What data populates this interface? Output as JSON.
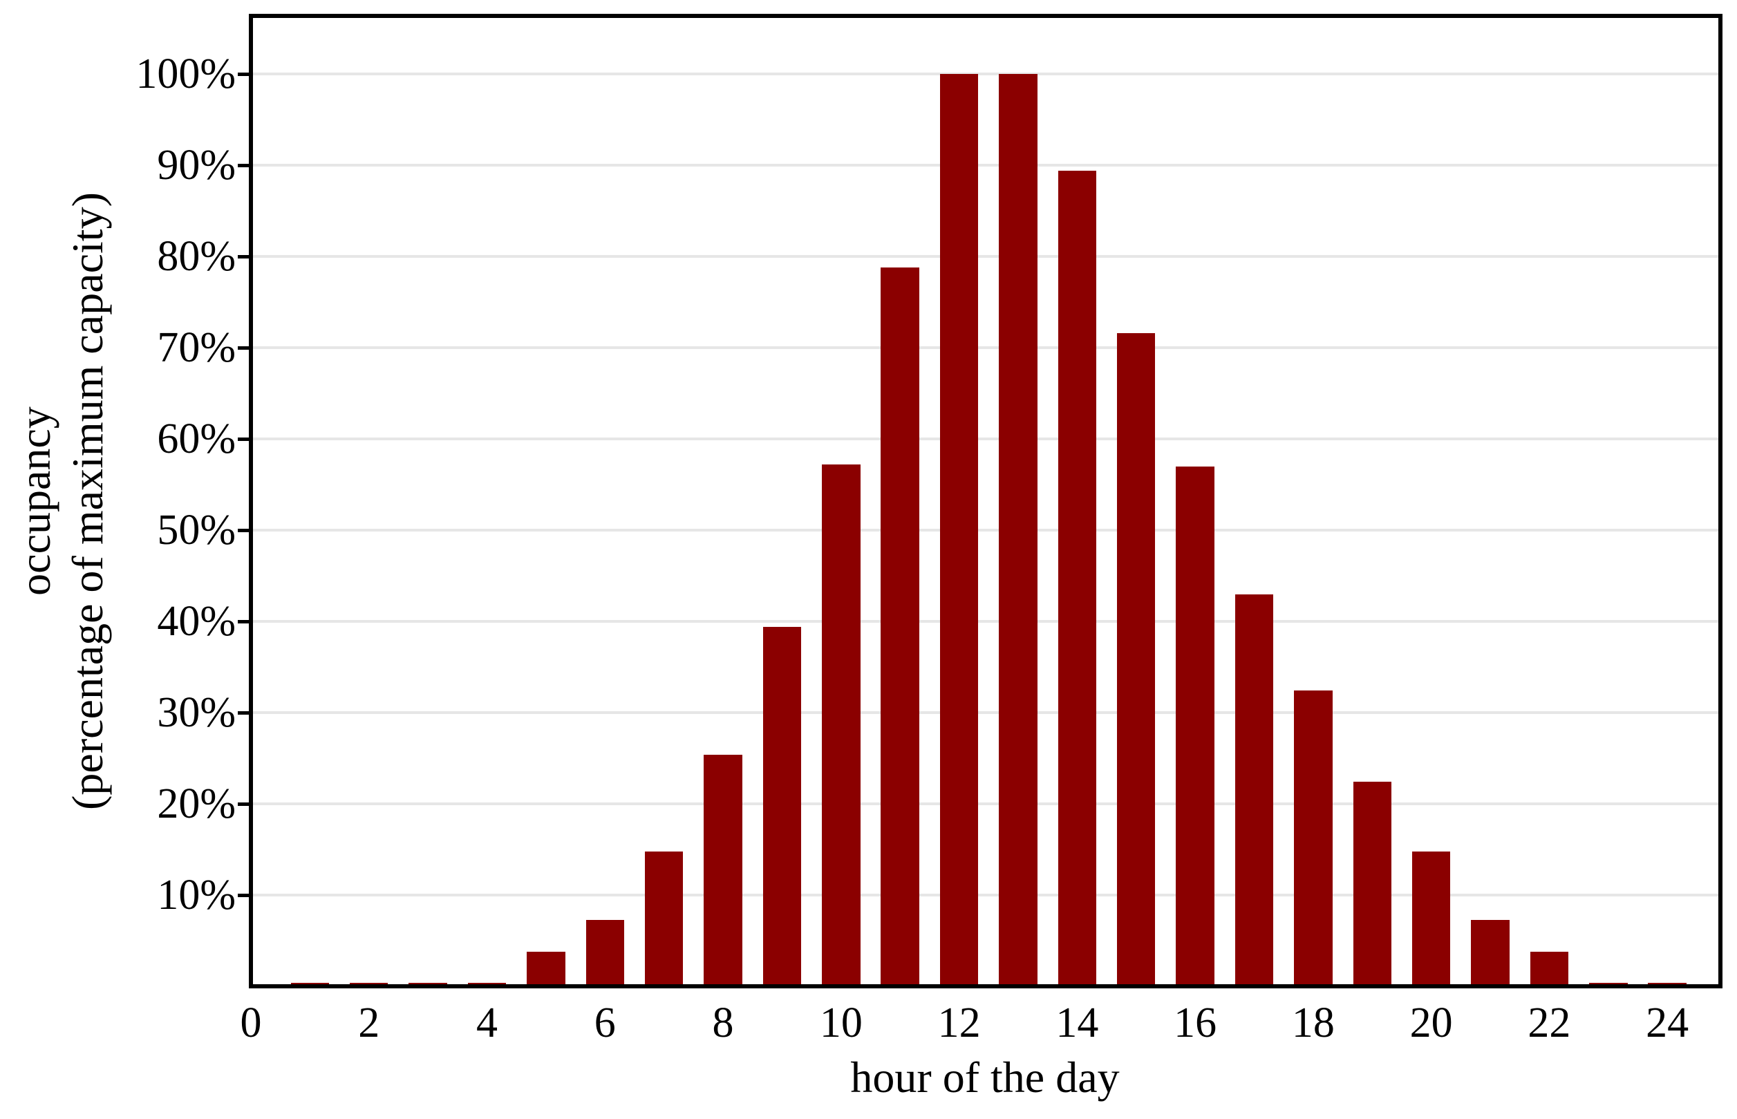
{
  "chart_data": {
    "type": "bar",
    "title": "",
    "xlabel": "hour of the day",
    "ylabel_line1": "occupancy",
    "ylabel_line2": "(percentage of maximum capacity)",
    "categories": [
      1,
      2,
      3,
      4,
      5,
      6,
      7,
      8,
      9,
      10,
      11,
      12,
      13,
      14,
      15,
      16,
      17,
      18,
      19,
      20,
      21,
      22,
      23,
      24
    ],
    "values": [
      0.4,
      0.4,
      0.4,
      0.4,
      3.8,
      7.3,
      14.8,
      25.4,
      39.4,
      57.2,
      78.8,
      100,
      100,
      89.4,
      71.6,
      57.0,
      43.0,
      32.4,
      22.4,
      14.8,
      7.3,
      3.8,
      0.4,
      0.4
    ],
    "x_ticks": [
      0,
      2,
      4,
      6,
      8,
      10,
      12,
      14,
      16,
      18,
      20,
      22,
      24
    ],
    "y_ticks": [
      10,
      20,
      30,
      40,
      50,
      60,
      70,
      80,
      90,
      100
    ],
    "y_tick_suffix": "%",
    "xlim": [
      0,
      24.9
    ],
    "ylim": [
      0,
      106.4
    ],
    "bar_width": 0.65,
    "bar_color": "#8B0000",
    "grid_color": "#E6E6E6",
    "axis_color": "#000000",
    "background_color": "#FFFFFF",
    "grid": true,
    "legend": "none"
  }
}
